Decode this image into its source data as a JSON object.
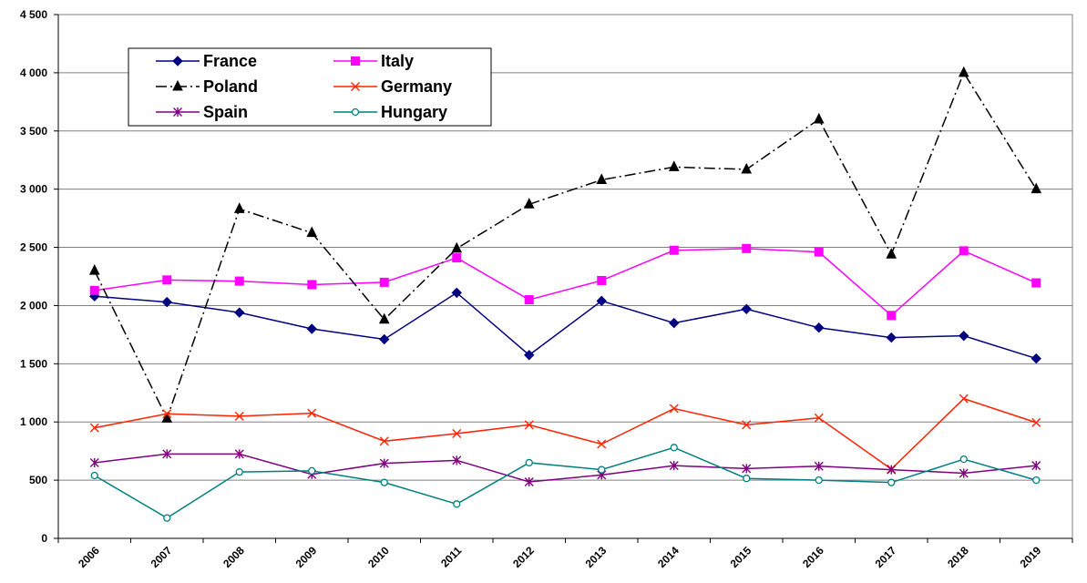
{
  "chart_data": {
    "type": "line",
    "title": "",
    "xlabel": "",
    "ylabel": "",
    "ylim": [
      0,
      4500
    ],
    "yticks": [
      0,
      500,
      1000,
      1500,
      2000,
      2500,
      3000,
      3500,
      4000,
      4500
    ],
    "ytick_labels": [
      "0",
      "500",
      "1 000",
      "1 500",
      "2 000",
      "2 500",
      "3 000",
      "3 500",
      "4 000",
      "4 500"
    ],
    "grid": "horizontal",
    "legend_position": "top-left",
    "categories": [
      "2006",
      "2007",
      "2008",
      "2009",
      "2010",
      "2011",
      "2012",
      "2013",
      "2014",
      "2015",
      "2016",
      "2017",
      "2018",
      "2019"
    ],
    "series": [
      {
        "name": "France",
        "color": "#000080",
        "marker": "diamond",
        "dash": "solid",
        "values": [
          2080,
          2030,
          1940,
          1800,
          1710,
          2110,
          1575,
          2040,
          1850,
          1970,
          1810,
          1725,
          1740,
          1545
        ]
      },
      {
        "name": "Italy",
        "color": "#ff00ff",
        "marker": "square",
        "dash": "solid",
        "values": [
          2130,
          2220,
          2210,
          2180,
          2200,
          2410,
          2050,
          2215,
          2475,
          2490,
          2460,
          1915,
          2470,
          2195
        ]
      },
      {
        "name": "Poland",
        "color": "#000000",
        "marker": "triangle",
        "dash": "dashdot",
        "values": [
          2300,
          1030,
          2830,
          2625,
          1880,
          2490,
          2870,
          3080,
          3190,
          3170,
          3600,
          2440,
          4000,
          3000
        ]
      },
      {
        "name": "Germany",
        "color": "#ff2200",
        "marker": "x",
        "dash": "solid",
        "values": [
          950,
          1070,
          1050,
          1075,
          835,
          900,
          975,
          810,
          1115,
          975,
          1035,
          595,
          1200,
          995
        ]
      },
      {
        "name": "Spain",
        "color": "#800080",
        "marker": "star",
        "dash": "solid",
        "values": [
          650,
          725,
          725,
          550,
          645,
          670,
          485,
          545,
          625,
          600,
          620,
          590,
          560,
          625
        ]
      },
      {
        "name": "Hungary",
        "color": "#008080",
        "marker": "circle",
        "dash": "solid",
        "values": [
          540,
          175,
          570,
          580,
          480,
          295,
          650,
          590,
          780,
          515,
          500,
          480,
          680,
          500
        ]
      }
    ]
  }
}
